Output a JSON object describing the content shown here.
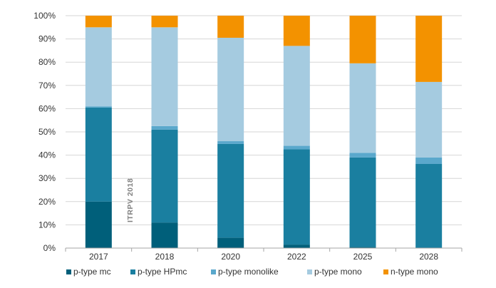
{
  "chart_data": {
    "type": "bar",
    "stacked": true,
    "categories": [
      "2017",
      "2018",
      "2020",
      "2022",
      "2025",
      "2028"
    ],
    "ylim": [
      0,
      100
    ],
    "yticks": [
      "0%",
      "10%",
      "20%",
      "30%",
      "40%",
      "50%",
      "60%",
      "70%",
      "80%",
      "90%",
      "100%"
    ],
    "ytick_values": [
      0,
      10,
      20,
      30,
      40,
      50,
      60,
      70,
      80,
      90,
      100
    ],
    "grid": true,
    "legend_position": "bottom",
    "annotation": "ITRPV 2018",
    "series": [
      {
        "name": "p-type mc",
        "color": "#005f7a",
        "values": [
          20,
          11,
          4.5,
          1.5,
          0.5,
          0
        ]
      },
      {
        "name": "p-type HPmc",
        "color": "#1a7fa0",
        "values": [
          40.5,
          40,
          40.3,
          41,
          38.5,
          36.2
        ]
      },
      {
        "name": "p-type monolike",
        "color": "#5aa8cc",
        "values": [
          0.5,
          1.5,
          1.2,
          1.5,
          2,
          2.8
        ]
      },
      {
        "name": "p-type mono",
        "color": "#a5cbe0",
        "values": [
          34,
          42.5,
          44.5,
          43,
          38.5,
          32.5
        ]
      },
      {
        "name": "n-type mono",
        "color": "#f39200",
        "values": [
          5,
          5,
          9.5,
          13,
          20.5,
          28.5
        ]
      }
    ]
  }
}
